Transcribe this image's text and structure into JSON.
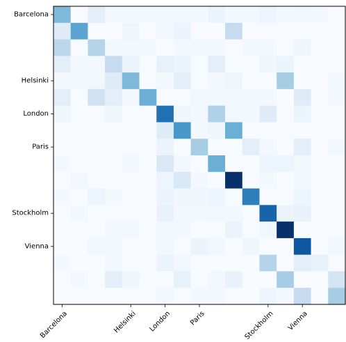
{
  "chart_data": {
    "type": "heatmap",
    "title": "",
    "xlabel": "",
    "ylabel": "",
    "colormap": "Blues",
    "value_range": [
      0,
      1
    ],
    "grid": false,
    "tick_labels": [
      "Barcelona",
      "Helsinki",
      "London",
      "Paris",
      "Stockholm",
      "Vienna"
    ],
    "tick_positions": [
      0,
      4,
      6,
      8,
      12,
      14
    ],
    "x_tick_labels": [
      "Barcelona",
      "Helsinki",
      "London",
      "Paris",
      "Stockholm",
      "Vienna"
    ],
    "x_tick_positions": [
      0,
      4,
      6,
      8,
      12,
      14
    ],
    "n_rows": 18,
    "n_cols": 17,
    "matrix": [
      [
        0.45,
        0.0,
        0.1,
        0.02,
        0.02,
        0.02,
        0.02,
        0.02,
        0.02,
        0.06,
        0.02,
        0.02,
        0.05,
        0.02,
        0.03,
        0.02,
        0.0
      ],
      [
        0.12,
        0.55,
        0.0,
        0.0,
        0.04,
        0.0,
        0.02,
        0.06,
        0.0,
        0.0,
        0.25,
        0.0,
        0.0,
        0.0,
        0.0,
        0.0,
        0.0
      ],
      [
        0.28,
        0.0,
        0.3,
        0.02,
        0.02,
        0.02,
        0.0,
        0.02,
        0.03,
        0.02,
        0.0,
        0.02,
        0.02,
        0.0,
        0.04,
        0.0,
        0.0
      ],
      [
        0.1,
        0.02,
        0.02,
        0.25,
        0.06,
        0.0,
        0.08,
        0.06,
        0.0,
        0.1,
        0.0,
        0.0,
        0.04,
        0.06,
        0.0,
        0.0,
        0.0
      ],
      [
        0.03,
        0.02,
        0.03,
        0.12,
        0.45,
        0.0,
        0.02,
        0.1,
        0.0,
        0.02,
        0.04,
        0.0,
        0.0,
        0.35,
        0.0,
        0.0,
        0.02
      ],
      [
        0.1,
        0.0,
        0.2,
        0.1,
        0.02,
        0.5,
        0.0,
        0.0,
        0.03,
        0.03,
        0.02,
        0.03,
        0.02,
        0.0,
        0.12,
        0.0,
        0.03
      ],
      [
        0.04,
        0.0,
        0.0,
        0.04,
        0.0,
        0.0,
        0.75,
        0.04,
        0.02,
        0.32,
        0.02,
        0.02,
        0.12,
        0.0,
        0.06,
        0.0,
        0.0
      ],
      [
        0.0,
        0.0,
        0.0,
        0.0,
        0.0,
        0.0,
        0.12,
        0.6,
        0.02,
        0.04,
        0.5,
        0.0,
        0.0,
        0.0,
        0.0,
        0.0,
        0.0
      ],
      [
        0.0,
        0.0,
        0.0,
        0.0,
        0.0,
        0.0,
        0.06,
        0.0,
        0.35,
        0.0,
        0.0,
        0.1,
        0.02,
        0.0,
        0.1,
        0.0,
        0.02
      ],
      [
        0.02,
        0.0,
        0.0,
        0.0,
        0.03,
        0.0,
        0.15,
        0.02,
        0.0,
        0.5,
        0.0,
        0.0,
        0.05,
        0.05,
        0.03,
        0.0,
        0.0
      ],
      [
        0.0,
        0.03,
        0.0,
        0.0,
        0.0,
        0.0,
        0.05,
        0.15,
        0.02,
        0.0,
        1.0,
        0.0,
        0.02,
        0.0,
        0.02,
        0.0,
        0.0
      ],
      [
        0.02,
        0.0,
        0.05,
        0.02,
        0.0,
        0.0,
        0.06,
        0.04,
        0.04,
        0.05,
        0.0,
        0.7,
        0.0,
        0.0,
        0.05,
        0.0,
        0.0
      ],
      [
        0.0,
        0.02,
        0.0,
        0.0,
        0.0,
        0.0,
        0.07,
        0.03,
        0.02,
        0.03,
        0.02,
        0.0,
        0.8,
        0.06,
        0.07,
        0.0,
        0.0
      ],
      [
        0.0,
        0.0,
        0.0,
        0.03,
        0.03,
        0.0,
        0.02,
        0.02,
        0.0,
        0.0,
        0.06,
        0.0,
        0.03,
        1.0,
        0.0,
        0.0,
        0.0
      ],
      [
        0.0,
        0.0,
        0.03,
        0.02,
        0.0,
        0.0,
        0.02,
        0.0,
        0.06,
        0.03,
        0.0,
        0.04,
        0.0,
        0.0,
        0.85,
        0.0,
        0.03
      ],
      [
        0.02,
        0.0,
        0.0,
        0.03,
        0.0,
        0.0,
        0.06,
        0.03,
        0.0,
        0.0,
        0.0,
        0.0,
        0.3,
        0.0,
        0.1,
        0.08,
        0.0
      ],
      [
        0.0,
        0.02,
        0.0,
        0.1,
        0.04,
        0.0,
        0.0,
        0.08,
        0.0,
        0.03,
        0.07,
        0.0,
        0.0,
        0.35,
        0.0,
        0.0,
        0.18
      ],
      [
        0.0,
        0.0,
        0.0,
        0.0,
        0.0,
        0.0,
        0.02,
        0.0,
        0.02,
        0.02,
        0.0,
        0.0,
        0.05,
        0.02,
        0.25,
        0.0,
        0.35
      ]
    ]
  }
}
